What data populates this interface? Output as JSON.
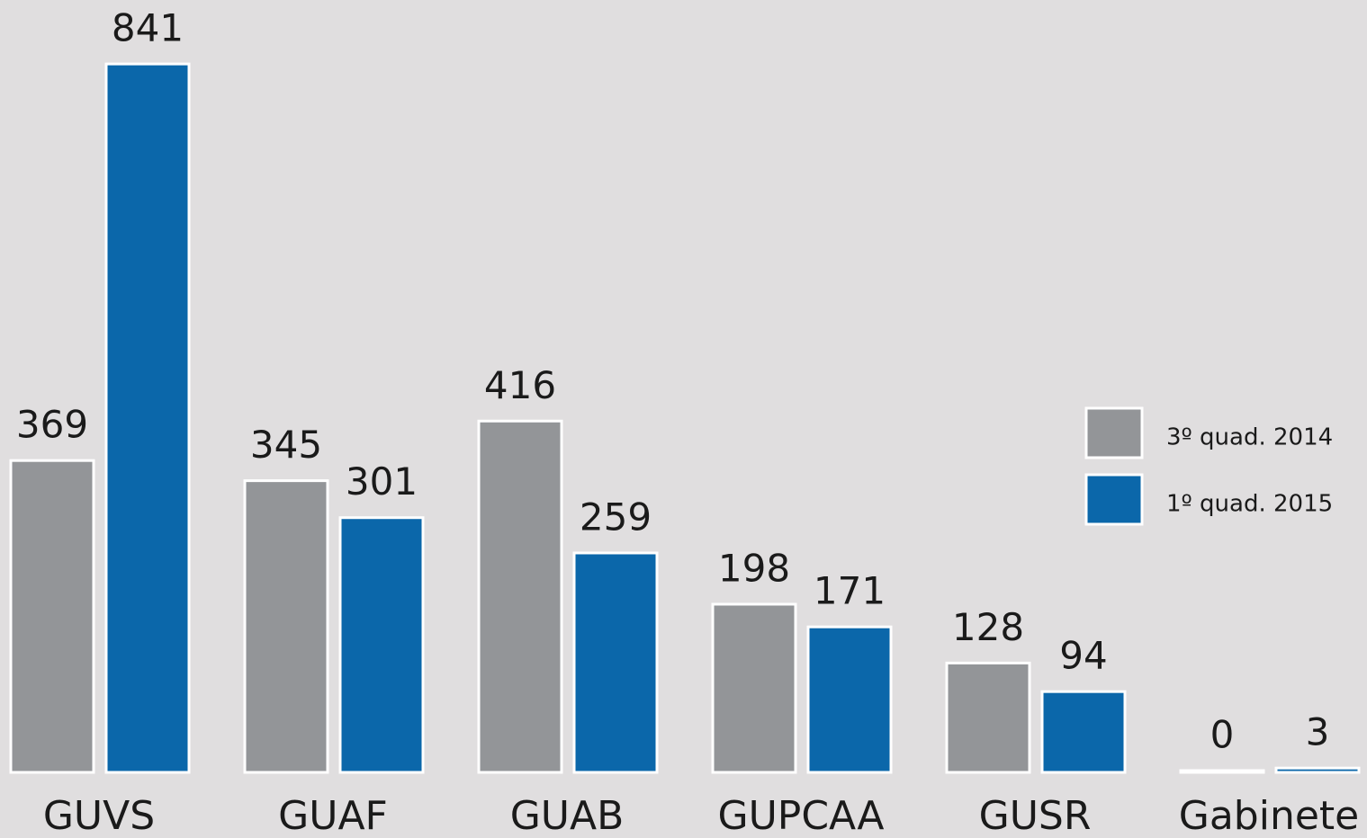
{
  "chart_data": {
    "type": "bar",
    "categories": [
      "GUVS",
      "GUAF",
      "GUAB",
      "GUPCAA",
      "GUSR",
      "Gabinete"
    ],
    "series": [
      {
        "name": "3º quad. 2014",
        "color": "#939598",
        "values": [
          369,
          345,
          416,
          198,
          128,
          0
        ]
      },
      {
        "name": "1º quad. 2015",
        "color": "#0b67aa",
        "values": [
          841,
          301,
          259,
          171,
          94,
          3
        ]
      }
    ],
    "ylim": [
      0,
      900
    ],
    "legend": "right"
  }
}
